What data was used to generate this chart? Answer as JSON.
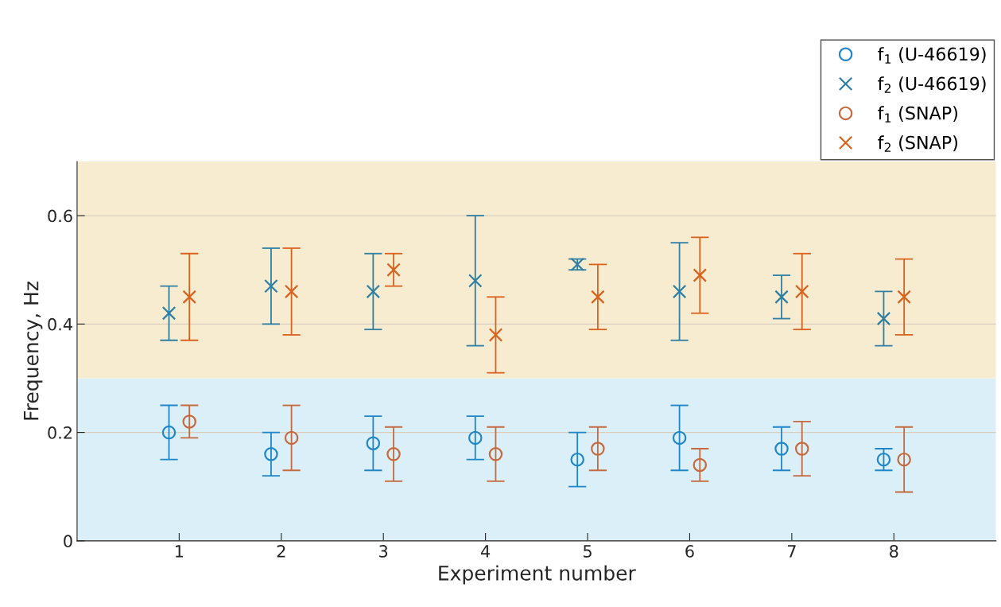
{
  "chart_data": {
    "type": "scatter",
    "xlabel": "Experiment number",
    "ylabel": "Frequency, Hz",
    "xlim": [
      0,
      9
    ],
    "xticks": [
      1,
      2,
      3,
      4,
      5,
      6,
      7,
      8
    ],
    "ylim": [
      0,
      0.7
    ],
    "yticks": [
      0,
      0.2,
      0.4,
      0.6
    ],
    "grid": "y",
    "legend": "top right",
    "bands": [
      {
        "axis": "y",
        "from": 0,
        "to": 0.3,
        "color": "#dbeff8"
      },
      {
        "axis": "y",
        "from": 0.3,
        "to": 0.7,
        "color": "#f8ecd0"
      }
    ],
    "series": [
      {
        "name": "f$_{1}$ (U-46619)",
        "color": "#1f86c8",
        "marker": "circle",
        "x": [
          0.9,
          1.9,
          2.9,
          3.9,
          4.9,
          5.9,
          6.9,
          7.9
        ],
        "values": [
          0.2,
          0.16,
          0.18,
          0.19,
          0.15,
          0.19,
          0.17,
          0.15
        ],
        "errors": [
          [
            0.15,
            0.25
          ],
          [
            0.12,
            0.2
          ],
          [
            0.13,
            0.23
          ],
          [
            0.15,
            0.23
          ],
          [
            0.1,
            0.2
          ],
          [
            0.13,
            0.25
          ],
          [
            0.13,
            0.21
          ],
          [
            0.13,
            0.17
          ]
        ]
      },
      {
        "name": "f$_{2}$ (U-46619)",
        "color": "#2e7fa3",
        "marker": "cross",
        "x": [
          0.9,
          1.9,
          2.9,
          3.9,
          4.9,
          5.9,
          6.9,
          7.9
        ],
        "values": [
          0.42,
          0.47,
          0.46,
          0.48,
          0.51,
          0.46,
          0.45,
          0.41
        ],
        "errors": [
          [
            0.37,
            0.47
          ],
          [
            0.4,
            0.54
          ],
          [
            0.39,
            0.53
          ],
          [
            0.36,
            0.6
          ],
          [
            0.5,
            0.52
          ],
          [
            0.37,
            0.55
          ],
          [
            0.41,
            0.49
          ],
          [
            0.36,
            0.46
          ]
        ]
      },
      {
        "name": "f$_{1}$ (SNAP)",
        "color": "#c56a3e",
        "marker": "circle",
        "x": [
          1.1,
          2.1,
          3.1,
          4.1,
          5.1,
          6.1,
          7.1,
          8.1
        ],
        "values": [
          0.22,
          0.19,
          0.16,
          0.16,
          0.17,
          0.14,
          0.17,
          0.15
        ],
        "errors": [
          [
            0.19,
            0.25
          ],
          [
            0.13,
            0.25
          ],
          [
            0.11,
            0.21
          ],
          [
            0.11,
            0.21
          ],
          [
            0.13,
            0.21
          ],
          [
            0.11,
            0.17
          ],
          [
            0.12,
            0.22
          ],
          [
            0.09,
            0.21
          ]
        ]
      },
      {
        "name": "f$_{2}$ (SNAP)",
        "color": "#d9621f",
        "marker": "cross",
        "x": [
          1.1,
          2.1,
          3.1,
          4.1,
          5.1,
          6.1,
          7.1,
          8.1
        ],
        "values": [
          0.45,
          0.46,
          0.5,
          0.38,
          0.45,
          0.49,
          0.46,
          0.45
        ],
        "errors": [
          [
            0.37,
            0.53
          ],
          [
            0.38,
            0.54
          ],
          [
            0.47,
            0.53
          ],
          [
            0.31,
            0.45
          ],
          [
            0.39,
            0.51
          ],
          [
            0.42,
            0.56
          ],
          [
            0.39,
            0.53
          ],
          [
            0.38,
            0.52
          ]
        ]
      }
    ]
  }
}
